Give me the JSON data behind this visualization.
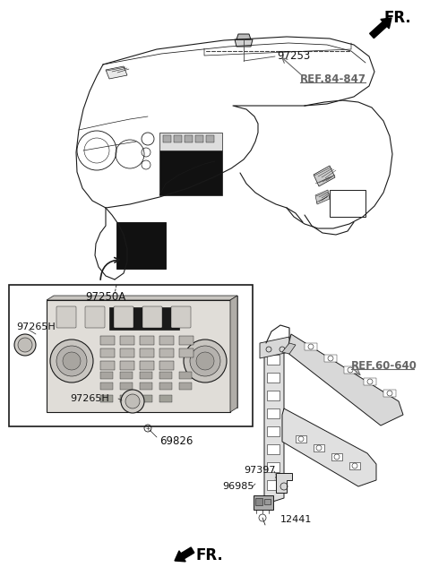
{
  "background_color": "#ffffff",
  "fig_width": 4.8,
  "fig_height": 6.43,
  "dpi": 100,
  "labels": {
    "ref_84_847": "REF.84-847",
    "ref_60_640": "REF.60-640",
    "part_97253": "97253",
    "part_97250A": "97250A",
    "part_97265H_top": "97265H",
    "part_97265H_bot": "97265H",
    "part_69826": "69826",
    "part_97397": "97397",
    "part_96985": "96985",
    "part_12441": "12441",
    "FR": "FR."
  },
  "colors": {
    "line": "#1a1a1a",
    "arrow_fill": "#000000",
    "ref_text": "#666666",
    "label_text": "#111111",
    "background": "#ffffff",
    "dark_fill": "#111111",
    "gray_fill": "#aaaaaa",
    "light_gray": "#cccccc",
    "medium_gray": "#888888"
  },
  "lw": 0.8
}
